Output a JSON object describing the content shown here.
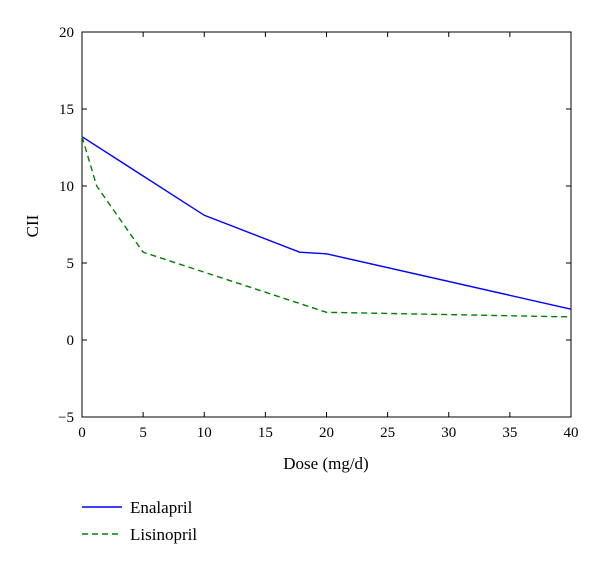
{
  "chart_data": {
    "type": "line",
    "title": "",
    "xlabel": "Dose (mg/d)",
    "ylabel": "CII",
    "xlim": [
      0,
      40
    ],
    "ylim": [
      -5,
      20
    ],
    "xticks": [
      0,
      5,
      10,
      15,
      20,
      25,
      30,
      35,
      40
    ],
    "yticks": [
      -5,
      0,
      5,
      10,
      15,
      20
    ],
    "xtick_labels": [
      "0",
      "5",
      "10",
      "15",
      "20",
      "25",
      "30",
      "35",
      "40"
    ],
    "ytick_labels": [
      "−5",
      "0",
      "5",
      "10",
      "15",
      "20"
    ],
    "grid": false,
    "legend_placement": "below",
    "series": [
      {
        "name": "Enalapril",
        "color": "#0000ff",
        "line_style": "solid",
        "x": [
          0,
          10,
          17.8,
          20,
          40
        ],
        "y": [
          13.2,
          8.1,
          5.7,
          5.6,
          2.0
        ]
      },
      {
        "name": "Lisinopril",
        "color": "#008000",
        "line_style": "dashed",
        "x": [
          0,
          1.2,
          5,
          10,
          20,
          40
        ],
        "y": [
          13.2,
          10.0,
          5.7,
          4.4,
          1.8,
          1.5
        ]
      }
    ]
  }
}
